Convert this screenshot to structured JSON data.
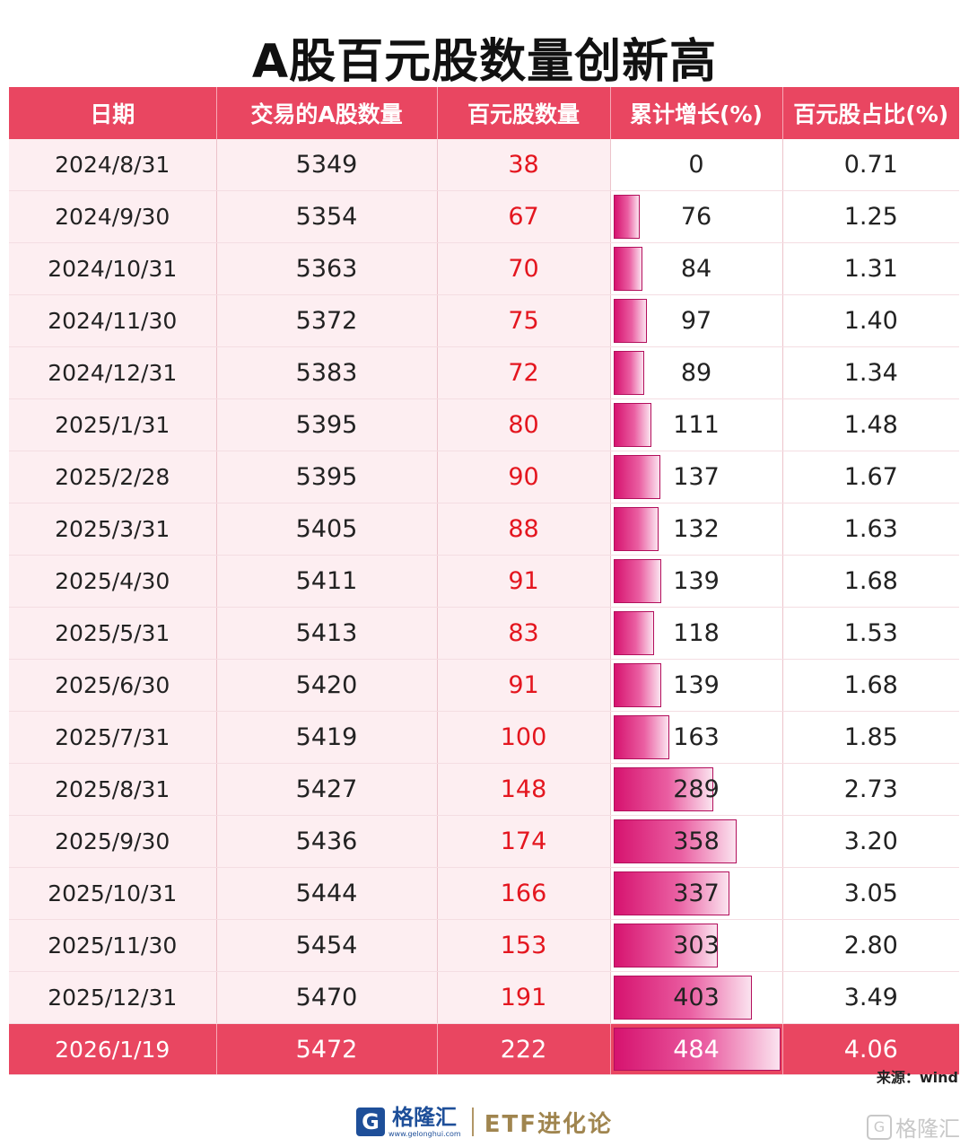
{
  "title": "A股百元股数量创新高",
  "source": "来源：wind",
  "footer": {
    "logo_icon": "G",
    "logo_name": "格隆汇",
    "logo_url": "www.gelonghui.com",
    "brand": "ETF进化论"
  },
  "watermark": {
    "icon": "G",
    "text": "格隆汇"
  },
  "colors": {
    "header": "#e94661",
    "red_text": "#e4161f",
    "bar": "#d6136f",
    "shaded": "#fdeef1"
  },
  "chart_data": {
    "type": "table",
    "title": "A股百元股数量创新高",
    "columns": [
      "日期",
      "交易的A股数量",
      "百元股数量",
      "累计增长(%)",
      "百元股占比(%)"
    ],
    "rows": [
      [
        "2024/8/31",
        "5349",
        "38",
        "0",
        "0.71"
      ],
      [
        "2024/9/30",
        "5354",
        "67",
        "76",
        "1.25"
      ],
      [
        "2024/10/31",
        "5363",
        "70",
        "84",
        "1.31"
      ],
      [
        "2024/11/30",
        "5372",
        "75",
        "97",
        "1.40"
      ],
      [
        "2024/12/31",
        "5383",
        "72",
        "89",
        "1.34"
      ],
      [
        "2025/1/31",
        "5395",
        "80",
        "111",
        "1.48"
      ],
      [
        "2025/2/28",
        "5395",
        "90",
        "137",
        "1.67"
      ],
      [
        "2025/3/31",
        "5405",
        "88",
        "132",
        "1.63"
      ],
      [
        "2025/4/30",
        "5411",
        "91",
        "139",
        "1.68"
      ],
      [
        "2025/5/31",
        "5413",
        "83",
        "118",
        "1.53"
      ],
      [
        "2025/6/30",
        "5420",
        "91",
        "139",
        "1.68"
      ],
      [
        "2025/7/31",
        "5419",
        "100",
        "163",
        "1.85"
      ],
      [
        "2025/8/31",
        "5427",
        "148",
        "289",
        "2.73"
      ],
      [
        "2025/9/30",
        "5436",
        "174",
        "358",
        "3.20"
      ],
      [
        "2025/10/31",
        "5444",
        "166",
        "337",
        "3.05"
      ],
      [
        "2025/11/30",
        "5454",
        "153",
        "303",
        "2.80"
      ],
      [
        "2025/12/31",
        "5470",
        "191",
        "403",
        "3.49"
      ],
      [
        "2026/1/19",
        "5472",
        "222",
        "484",
        "4.06"
      ]
    ],
    "bar_column": 3,
    "bar_max": 484
  }
}
